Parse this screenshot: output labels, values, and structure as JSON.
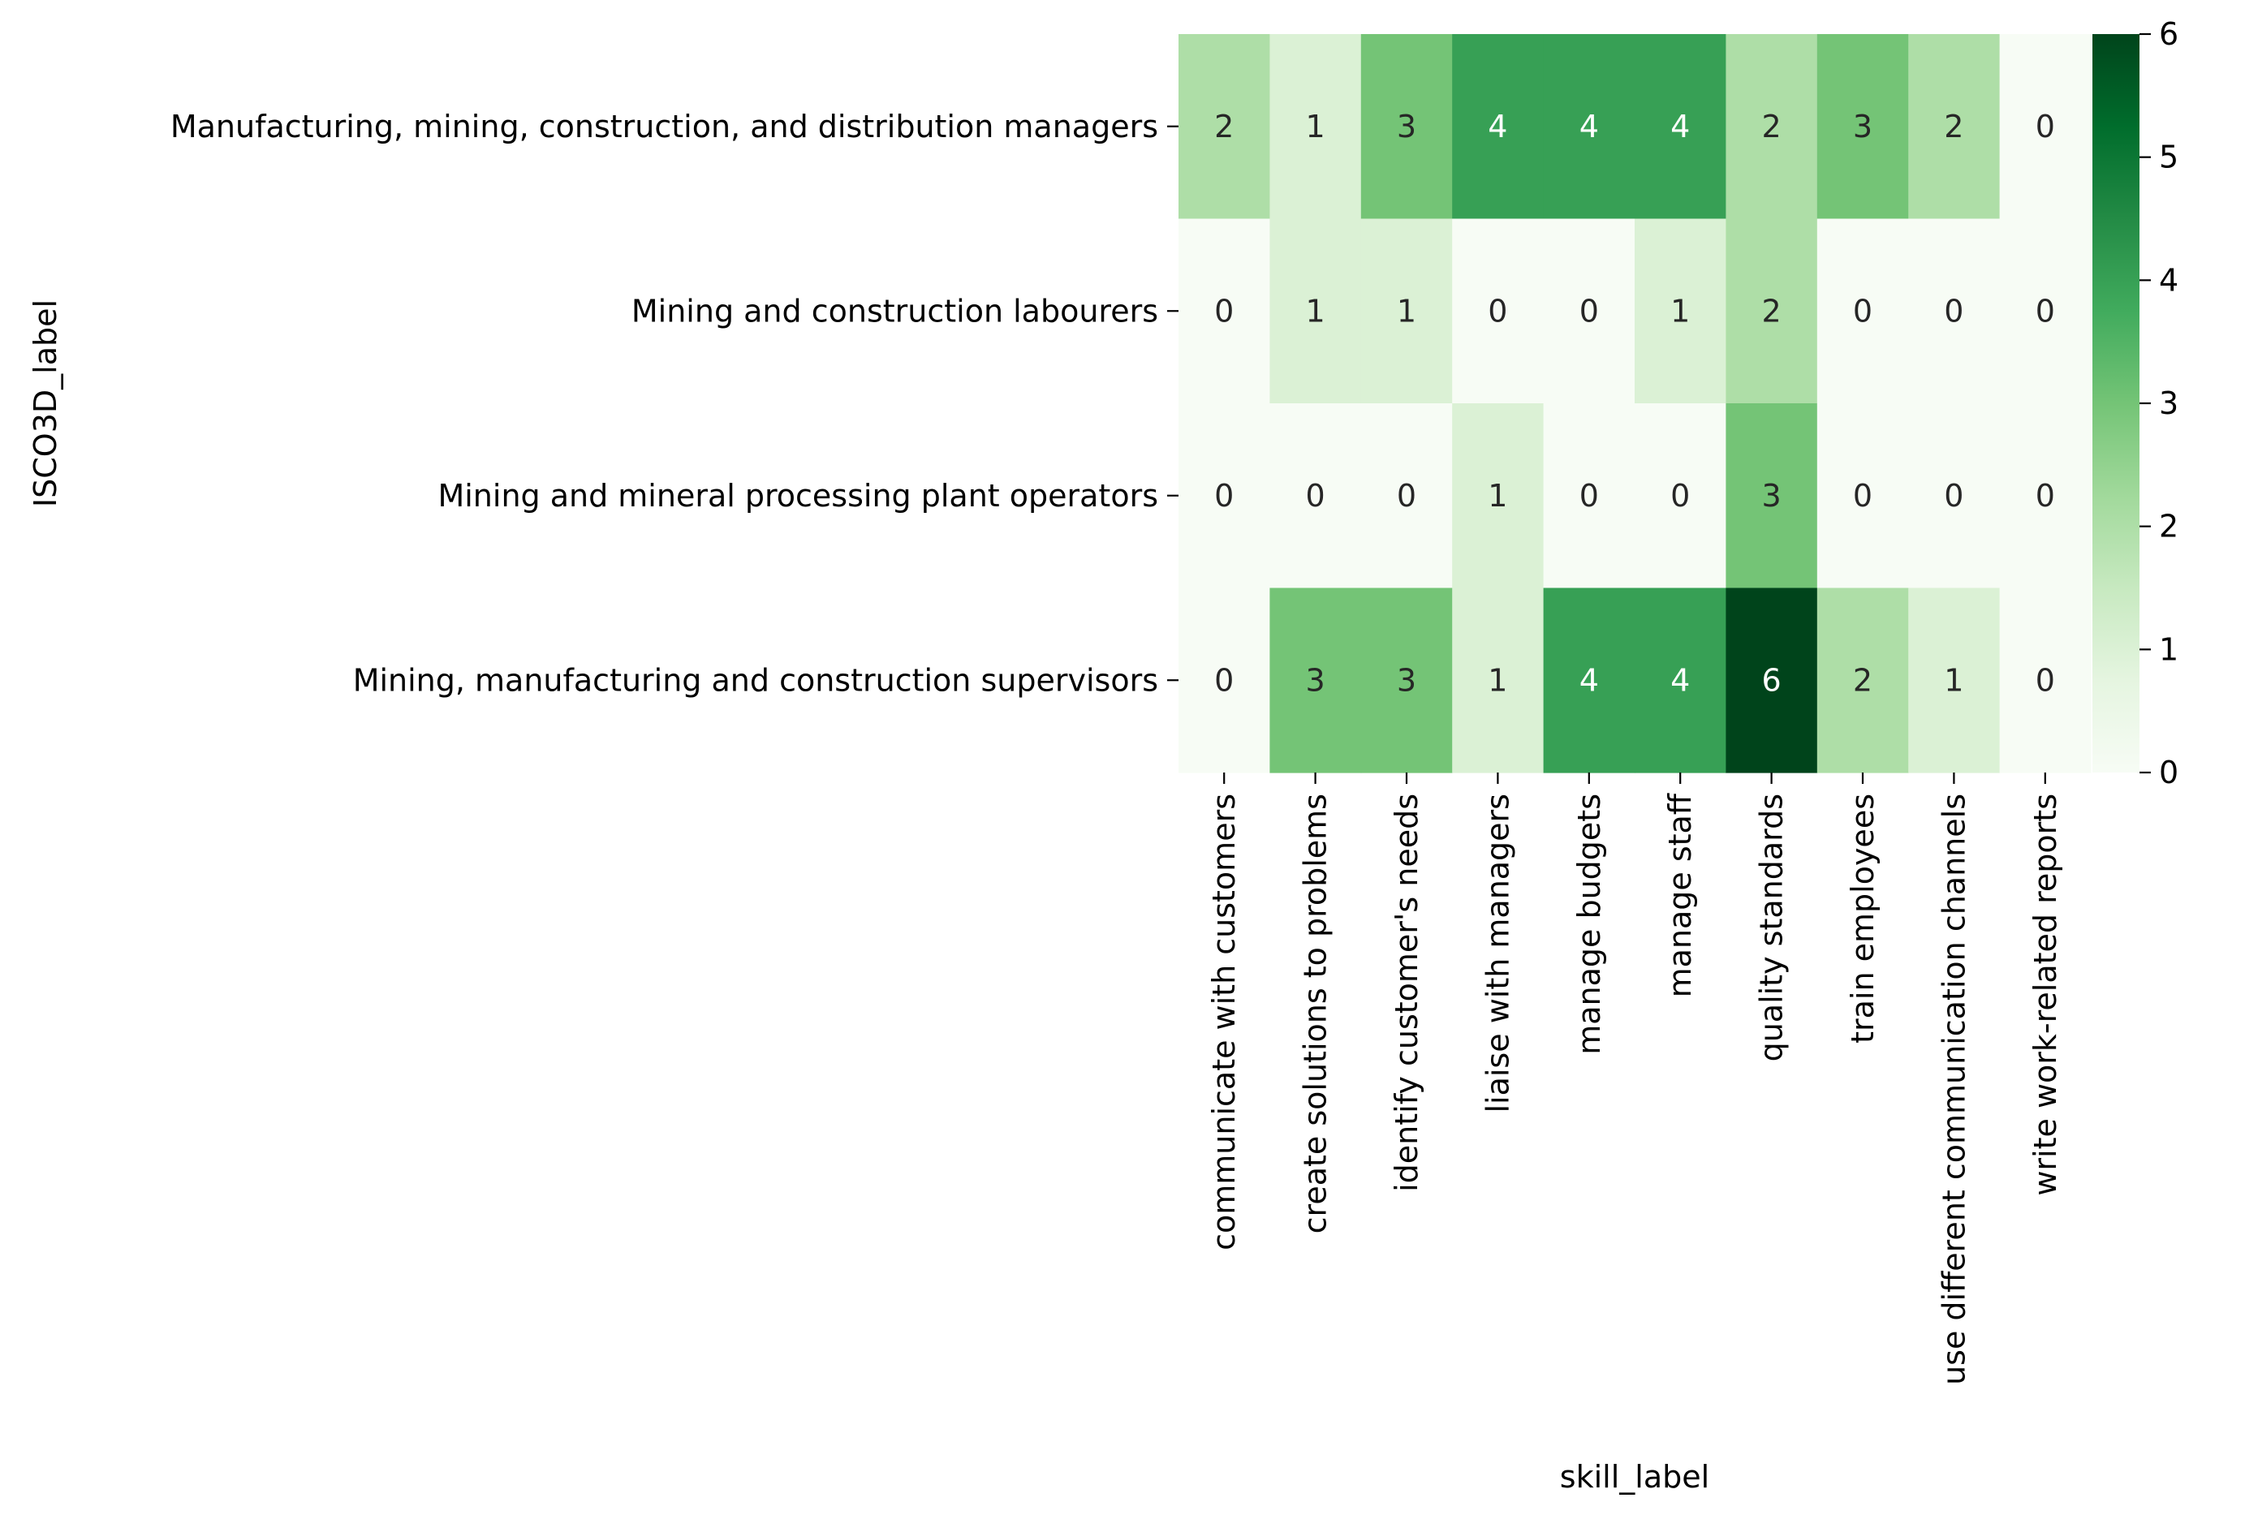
{
  "chart_data": {
    "type": "heatmap",
    "xlabel": "skill_label",
    "ylabel": "ISCO3D_label",
    "x_categories": [
      "communicate with customers",
      "create solutions to problems",
      "identify customer's needs",
      "liaise with managers",
      "manage budgets",
      "manage staff",
      "quality standards",
      "train employees",
      "use different communication channels",
      "write work-related reports"
    ],
    "y_categories": [
      "Manufacturing, mining, construction, and distribution managers",
      "Mining and construction labourers",
      "Mining and mineral processing plant operators",
      "Mining, manufacturing and construction supervisors"
    ],
    "values": [
      [
        2,
        1,
        3,
        4,
        4,
        4,
        2,
        3,
        2,
        0
      ],
      [
        0,
        1,
        1,
        0,
        0,
        1,
        2,
        0,
        0,
        0
      ],
      [
        0,
        0,
        0,
        1,
        0,
        0,
        3,
        0,
        0,
        0
      ],
      [
        0,
        3,
        3,
        1,
        4,
        4,
        6,
        2,
        1,
        0
      ]
    ],
    "annotations": true,
    "colormap": "Greens",
    "value_range": [
      0,
      6
    ],
    "colorbar_ticks": [
      "0",
      "1",
      "2",
      "3",
      "4",
      "5",
      "6"
    ],
    "colors": [
      "#f7fcf5",
      "#e5f5e0",
      "#c7e9c0",
      "#a1d99b",
      "#74c476",
      "#41ab5d",
      "#238b45",
      "#006d2c",
      "#00441b"
    ]
  }
}
